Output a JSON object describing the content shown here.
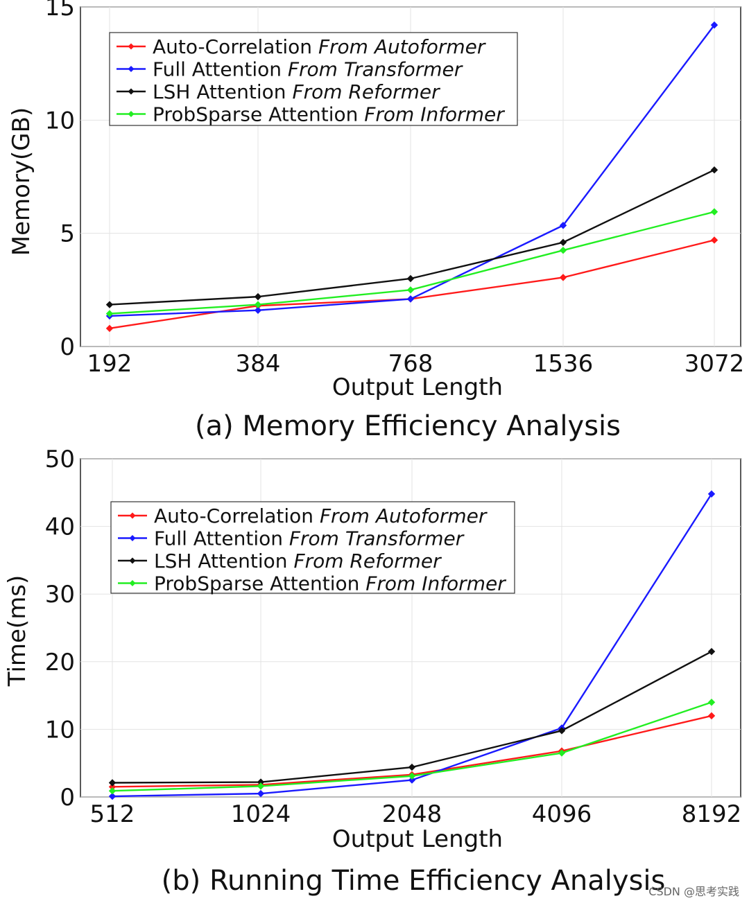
{
  "chart_data": [
    {
      "type": "line",
      "title": "(a) Memory Efficiency Analysis",
      "xlabel": "Output Length",
      "ylabel": "Memory(GB)",
      "categories": [
        "192",
        "384",
        "768",
        "1536",
        "3072"
      ],
      "ylim": [
        0,
        15
      ],
      "yticks": [
        0,
        5,
        10,
        15
      ],
      "grid": true,
      "legend_position": "top-left",
      "series": [
        {
          "name": "Auto-Correlation",
          "source": "From Autoformer",
          "color": "#ff1a1a",
          "values": [
            0.8,
            1.8,
            2.1,
            3.05,
            4.7
          ]
        },
        {
          "name": "Full Attention",
          "source": "From Transformer",
          "color": "#1a1aff",
          "values": [
            1.35,
            1.6,
            2.1,
            5.35,
            14.2
          ]
        },
        {
          "name": "LSH Attention",
          "source": "From Reformer",
          "color": "#111111",
          "values": [
            1.85,
            2.2,
            3.0,
            4.6,
            7.8
          ]
        },
        {
          "name": "ProbSparse Attention",
          "source": "From Informer",
          "color": "#22ee22",
          "values": [
            1.45,
            1.85,
            2.5,
            4.25,
            5.95
          ]
        }
      ]
    },
    {
      "type": "line",
      "title": "(b) Running Time Efficiency Analysis",
      "xlabel": "Output Length",
      "ylabel": "Time(ms)",
      "categories": [
        "512",
        "1024",
        "2048",
        "4096",
        "8192"
      ],
      "ylim": [
        0,
        50
      ],
      "yticks": [
        0,
        10,
        20,
        30,
        40,
        50
      ],
      "grid": true,
      "legend_position": "top-left",
      "series": [
        {
          "name": "Auto-Correlation",
          "source": "From Autoformer",
          "color": "#ff1a1a",
          "values": [
            1.5,
            1.8,
            3.3,
            6.8,
            12.0
          ]
        },
        {
          "name": "Full Attention",
          "source": "From Transformer",
          "color": "#1a1aff",
          "values": [
            0.1,
            0.5,
            2.5,
            10.2,
            44.8
          ]
        },
        {
          "name": "LSH Attention",
          "source": "From Reformer",
          "color": "#111111",
          "values": [
            2.1,
            2.2,
            4.4,
            9.8,
            21.5
          ]
        },
        {
          "name": "ProbSparse Attention",
          "source": "From Informer",
          "color": "#22ee22",
          "values": [
            0.9,
            1.6,
            3.1,
            6.5,
            14.0
          ]
        }
      ]
    }
  ],
  "watermark": "CSDN @思考实践"
}
